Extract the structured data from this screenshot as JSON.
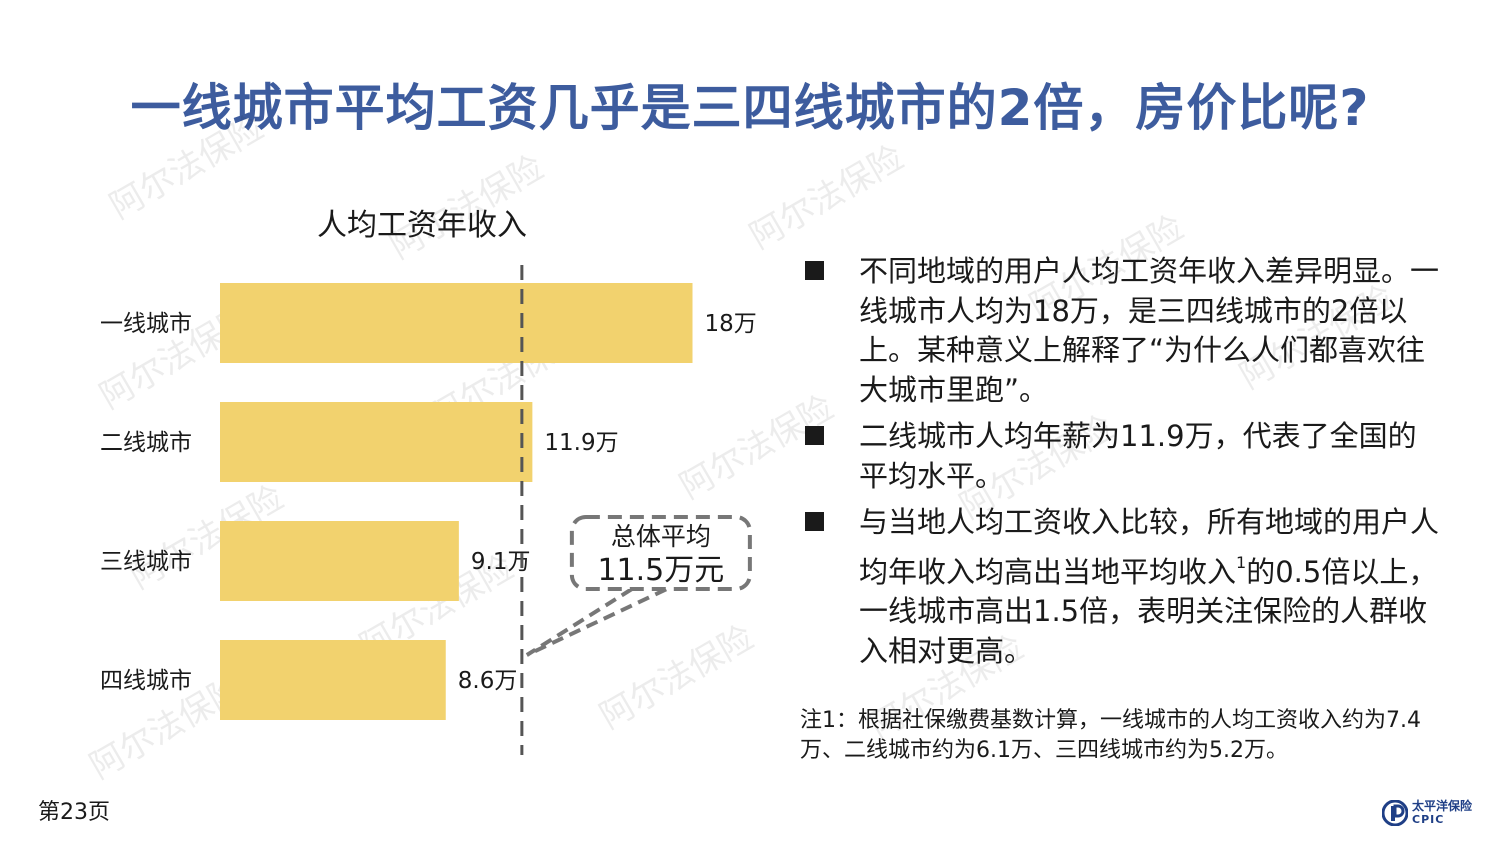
{
  "title": "一线城市平均工资几乎是三四线城市的2倍，房价比呢?",
  "watermark_text": "阿尔法保险",
  "chart_data": {
    "type": "bar",
    "orientation": "horizontal",
    "title": "人均工资年收入",
    "categories": [
      "一线城市",
      "二线城市",
      "三线城市",
      "四线城市"
    ],
    "values": [
      18,
      11.9,
      9.1,
      8.6
    ],
    "value_labels": [
      "18万",
      "11.9万",
      "9.1万",
      "8.6万"
    ],
    "bar_color": "#f2d26e",
    "reference_line": {
      "value": 11.5,
      "label_line1": "总体平均",
      "label_line2": "11.5万元"
    },
    "xlim": [
      0,
      18
    ]
  },
  "bullets": [
    {
      "text": "不同地域的用户人均工资年收入差异明显。一线城市人均为18万，是三四线城市的2倍以上。某种意义上解释了“为什么人们都喜欢往大城市里跑”。",
      "sup": ""
    },
    {
      "text": "二线城市人均年薪为11.9万，代表了全国的平均水平。",
      "sup": ""
    },
    {
      "text": "与当地人均工资收入比较，所有地域的用户人均年收入均高出当地平均收入",
      "sup": "1",
      "text_after": "的0.5倍以上，一线城市高出1.5倍，表明关注保险的人群收入相对更高。"
    }
  ],
  "note": "注1：根据社保缴费基数计算，一线城市的人均工资收入约为7.4万、二线城市约为6.1万、三四线城市约为5.2万。",
  "page_number": "第23页",
  "logo": {
    "name": "太平洋保险",
    "abbr": "CPIC"
  }
}
